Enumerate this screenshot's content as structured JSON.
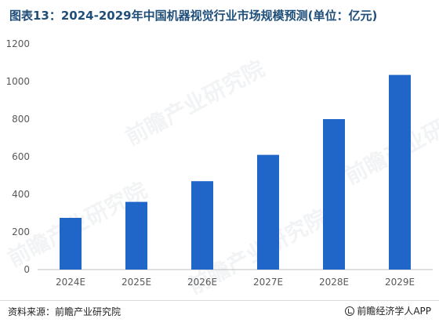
{
  "title": "图表13：2024-2029年中国机器视觉行业市场规模预测(单位：亿元)",
  "source": "资料来源：前瞻产业研究院",
  "brand": "前瞻经济学人APP",
  "watermark": "前瞻产业研究院",
  "colors": {
    "bar": "#1f66c8",
    "axis": "#bfbfbf",
    "tick_text": "#595959"
  },
  "chart_data": {
    "type": "bar",
    "categories": [
      "2024E",
      "2025E",
      "2026E",
      "2027E",
      "2028E",
      "2029E"
    ],
    "values": [
      275,
      360,
      470,
      610,
      800,
      1035
    ],
    "title": "图表13：2024-2029年中国机器视觉行业市场规模预测(单位：亿元)",
    "xlabel": "",
    "ylabel": "",
    "ylim": [
      0,
      1200
    ],
    "yticks": [
      0,
      200,
      400,
      600,
      800,
      1000,
      1200
    ],
    "grid": false,
    "legend": "none"
  }
}
